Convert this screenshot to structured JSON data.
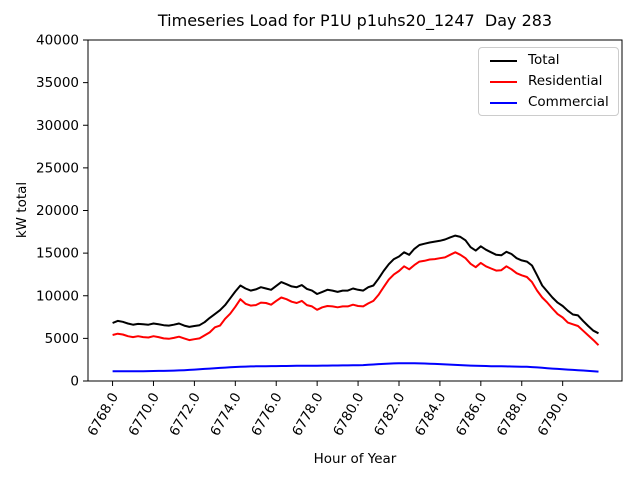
{
  "chart_data": {
    "type": "line",
    "title": "Timeseries Load for P1U p1uhs20_1247  Day 283",
    "xlabel": "Hour of Year",
    "ylabel": "kW total",
    "xlim": [
      6766.8,
      6792.9
    ],
    "ylim": [
      0,
      40000
    ],
    "grid": false,
    "legend_position": "upper right",
    "x_ticks": [
      "6768.0",
      "6770.0",
      "6772.0",
      "6774.0",
      "6776.0",
      "6778.0",
      "6780.0",
      "6782.0",
      "6784.0",
      "6786.0",
      "6788.0",
      "6790.0"
    ],
    "y_ticks": [
      "0",
      "5000",
      "10000",
      "15000",
      "20000",
      "25000",
      "30000",
      "35000",
      "40000"
    ],
    "x_start": 6768.0,
    "x_step": 0.25,
    "n_points": 96,
    "series": [
      {
        "name": "Total",
        "color": "#000000",
        "values": [
          6800,
          7050,
          6950,
          6750,
          6600,
          6700,
          6650,
          6600,
          6750,
          6650,
          6550,
          6500,
          6600,
          6750,
          6500,
          6350,
          6450,
          6550,
          6900,
          7400,
          7850,
          8300,
          8900,
          9700,
          10500,
          11200,
          10850,
          10600,
          10750,
          11000,
          10850,
          10700,
          11150,
          11600,
          11350,
          11100,
          11000,
          11250,
          10800,
          10600,
          10200,
          10450,
          10700,
          10600,
          10450,
          10600,
          10600,
          10850,
          10700,
          10600,
          11000,
          11200,
          12000,
          12900,
          13700,
          14300,
          14600,
          15100,
          14800,
          15500,
          15950,
          16100,
          16250,
          16350,
          16450,
          16600,
          16850,
          17050,
          16900,
          16500,
          15700,
          15300,
          15800,
          15400,
          15100,
          14800,
          14750,
          15150,
          14900,
          14400,
          14150,
          14000,
          13550,
          12400,
          11200,
          10500,
          9800,
          9200,
          8800,
          8250,
          7800,
          7700,
          7050,
          6450,
          5900,
          5600
        ]
      },
      {
        "name": "Residential",
        "color": "#ff0000",
        "values": [
          5400,
          5550,
          5450,
          5250,
          5150,
          5250,
          5150,
          5100,
          5250,
          5150,
          5000,
          4950,
          5050,
          5200,
          5000,
          4800,
          4900,
          5000,
          5350,
          5700,
          6300,
          6500,
          7300,
          7900,
          8700,
          9600,
          9050,
          8850,
          8900,
          9200,
          9150,
          8950,
          9400,
          9800,
          9600,
          9300,
          9150,
          9400,
          8900,
          8750,
          8350,
          8650,
          8800,
          8750,
          8650,
          8750,
          8750,
          8950,
          8800,
          8750,
          9100,
          9400,
          10100,
          11000,
          11900,
          12500,
          12900,
          13450,
          13100,
          13600,
          14000,
          14100,
          14250,
          14300,
          14400,
          14500,
          14800,
          15100,
          14800,
          14400,
          13750,
          13350,
          13850,
          13450,
          13200,
          12950,
          13000,
          13450,
          13100,
          12650,
          12400,
          12200,
          11600,
          10600,
          9800,
          9200,
          8500,
          7850,
          7450,
          6850,
          6650,
          6450,
          5900,
          5350,
          4800,
          4200
        ]
      },
      {
        "name": "Commercial",
        "color": "#0000ff",
        "values": [
          1140,
          1140,
          1145,
          1145,
          1150,
          1150,
          1155,
          1160,
          1170,
          1180,
          1190,
          1200,
          1220,
          1240,
          1270,
          1300,
          1340,
          1380,
          1420,
          1460,
          1500,
          1540,
          1570,
          1610,
          1640,
          1670,
          1690,
          1710,
          1720,
          1730,
          1740,
          1745,
          1750,
          1760,
          1765,
          1770,
          1780,
          1785,
          1790,
          1795,
          1800,
          1805,
          1810,
          1815,
          1820,
          1825,
          1830,
          1840,
          1850,
          1870,
          1900,
          1940,
          1980,
          2010,
          2040,
          2060,
          2080,
          2090,
          2090,
          2080,
          2070,
          2050,
          2030,
          2010,
          1980,
          1950,
          1920,
          1890,
          1860,
          1830,
          1810,
          1790,
          1770,
          1755,
          1740,
          1730,
          1720,
          1710,
          1700,
          1690,
          1680,
          1660,
          1630,
          1590,
          1550,
          1500,
          1460,
          1420,
          1380,
          1340,
          1300,
          1270,
          1230,
          1190,
          1150,
          1100
        ]
      }
    ]
  }
}
